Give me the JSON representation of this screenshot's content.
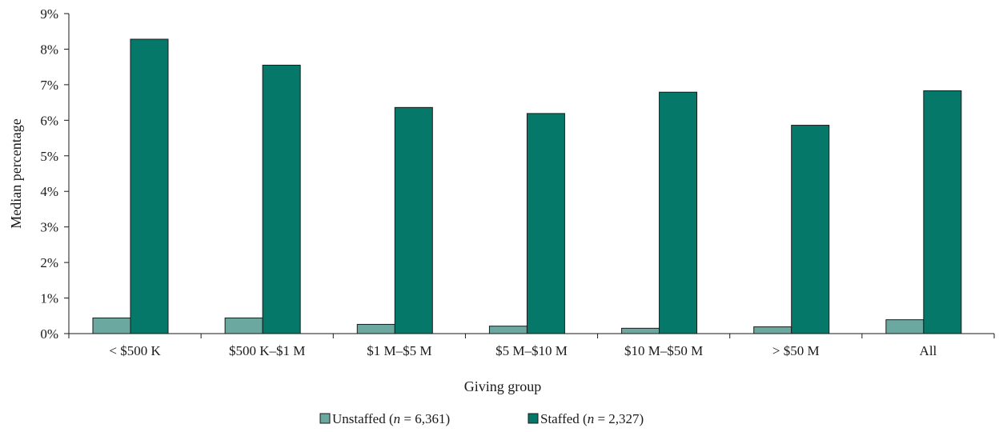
{
  "chart_data": {
    "type": "bar",
    "title": "",
    "xlabel": "Giving group",
    "ylabel": "Median percentage",
    "ylim": [
      0,
      9
    ],
    "y_ticks": [
      "0%",
      "1%",
      "2%",
      "3%",
      "4%",
      "5%",
      "6%",
      "7%",
      "8%",
      "9%"
    ],
    "y_unit": "%",
    "grid": false,
    "legend_position": "bottom",
    "categories": [
      "< $500 K",
      "$500 K–$1 M",
      "$1 M–$5 M",
      "$5 M–$10 M",
      "$10 M–$50 M",
      "> $50 M",
      "All"
    ],
    "series": [
      {
        "name": "Unstaffed (n = 6,361)",
        "name_parts": {
          "prefix": "Unstaffed (",
          "italic": "n",
          "suffix": " = 6,361)"
        },
        "color": "#6aa8a0",
        "values": [
          0.44,
          0.44,
          0.26,
          0.21,
          0.15,
          0.19,
          0.39
        ]
      },
      {
        "name": "Staffed (n = 2,327)",
        "name_parts": {
          "prefix": "Staffed (",
          "italic": "n",
          "suffix": " = 2,327)"
        },
        "color": "#05786a",
        "values": [
          8.28,
          7.55,
          6.36,
          6.19,
          6.79,
          5.86,
          6.83
        ]
      }
    ]
  }
}
